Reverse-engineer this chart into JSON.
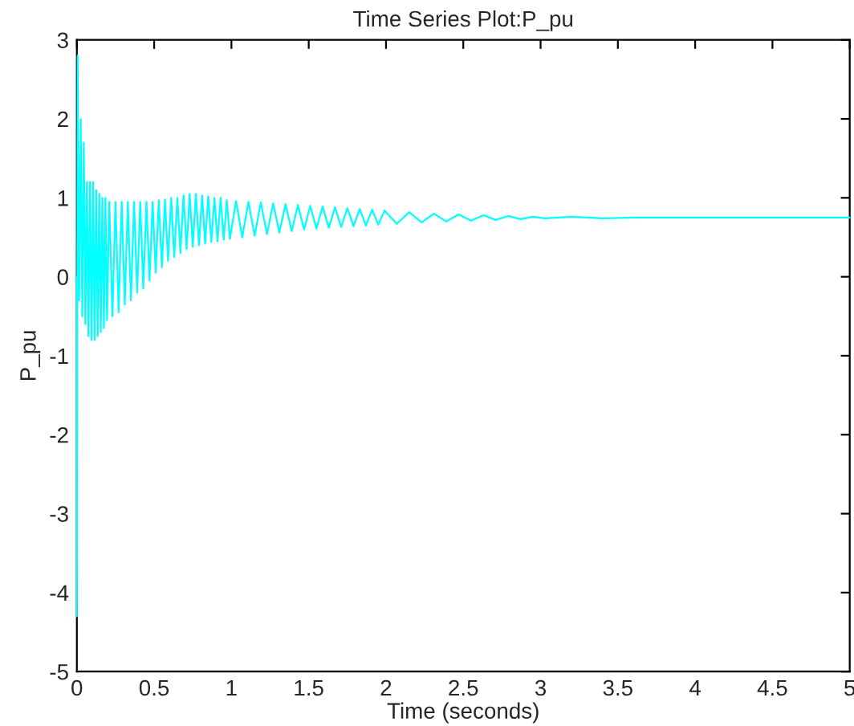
{
  "chart_data": {
    "type": "line",
    "title": "Time Series Plot:P_pu",
    "xlabel": "Time (seconds)",
    "ylabel": "P_pu",
    "xlim": [
      0,
      5
    ],
    "xticks": [
      0,
      0.5,
      1,
      1.5,
      2,
      2.5,
      3,
      3.5,
      4,
      4.5,
      5
    ],
    "ylim": [
      -5,
      3
    ],
    "yticks": [
      -5,
      -4,
      -3,
      -2,
      -1,
      0,
      1,
      2,
      3
    ],
    "grid": false,
    "legend": false,
    "marker": "none",
    "line_style": "solid",
    "series": [
      {
        "color": "#00ffff",
        "x": [
          0,
          0,
          0.005,
          0.015,
          0.025,
          0.035,
          0.045,
          0.055,
          0.065,
          0.075,
          0.085,
          0.095,
          0.105,
          0.115,
          0.125,
          0.135,
          0.145,
          0.155,
          0.165,
          0.175,
          0.185,
          0.195,
          0.21,
          0.23,
          0.25,
          0.27,
          0.29,
          0.31,
          0.33,
          0.35,
          0.37,
          0.39,
          0.41,
          0.43,
          0.45,
          0.47,
          0.49,
          0.51,
          0.53,
          0.55,
          0.57,
          0.59,
          0.61,
          0.63,
          0.65,
          0.67,
          0.69,
          0.71,
          0.73,
          0.75,
          0.77,
          0.79,
          0.81,
          0.83,
          0.85,
          0.87,
          0.89,
          0.91,
          0.93,
          0.95,
          0.97,
          0.99,
          1.03,
          1.07,
          1.11,
          1.15,
          1.19,
          1.23,
          1.27,
          1.31,
          1.35,
          1.39,
          1.43,
          1.47,
          1.51,
          1.55,
          1.59,
          1.63,
          1.67,
          1.71,
          1.75,
          1.79,
          1.83,
          1.87,
          1.91,
          1.95,
          1.99,
          2.07,
          2.15,
          2.23,
          2.31,
          2.39,
          2.47,
          2.55,
          2.63,
          2.71,
          2.79,
          2.87,
          2.95,
          3.03,
          3.2,
          3.4,
          3.6,
          4.0,
          5.0
        ],
        "values": [
          0,
          -4.3,
          2.8,
          -0.3,
          2.0,
          -0.5,
          1.7,
          -0.6,
          1.2,
          -0.75,
          1.2,
          -0.8,
          1.2,
          -0.8,
          1.1,
          -0.75,
          1.05,
          -0.7,
          1.0,
          -0.65,
          1.0,
          -0.55,
          0.95,
          -0.5,
          0.95,
          -0.45,
          0.95,
          -0.35,
          0.95,
          -0.3,
          0.95,
          -0.2,
          0.95,
          -0.15,
          0.95,
          -0.05,
          0.95,
          0.05,
          0.97,
          0.12,
          0.98,
          0.2,
          1.0,
          0.25,
          1.0,
          0.3,
          1.03,
          0.35,
          1.05,
          0.38,
          1.05,
          0.4,
          1.03,
          0.42,
          1.02,
          0.44,
          1.0,
          0.45,
          1.0,
          0.47,
          0.97,
          0.48,
          0.96,
          0.5,
          0.95,
          0.52,
          0.94,
          0.54,
          0.93,
          0.56,
          0.92,
          0.58,
          0.91,
          0.6,
          0.9,
          0.61,
          0.89,
          0.62,
          0.88,
          0.63,
          0.87,
          0.64,
          0.86,
          0.65,
          0.85,
          0.66,
          0.84,
          0.67,
          0.82,
          0.69,
          0.8,
          0.7,
          0.79,
          0.71,
          0.78,
          0.72,
          0.77,
          0.73,
          0.76,
          0.74,
          0.76,
          0.74,
          0.75,
          0.75,
          0.75
        ]
      }
    ]
  }
}
